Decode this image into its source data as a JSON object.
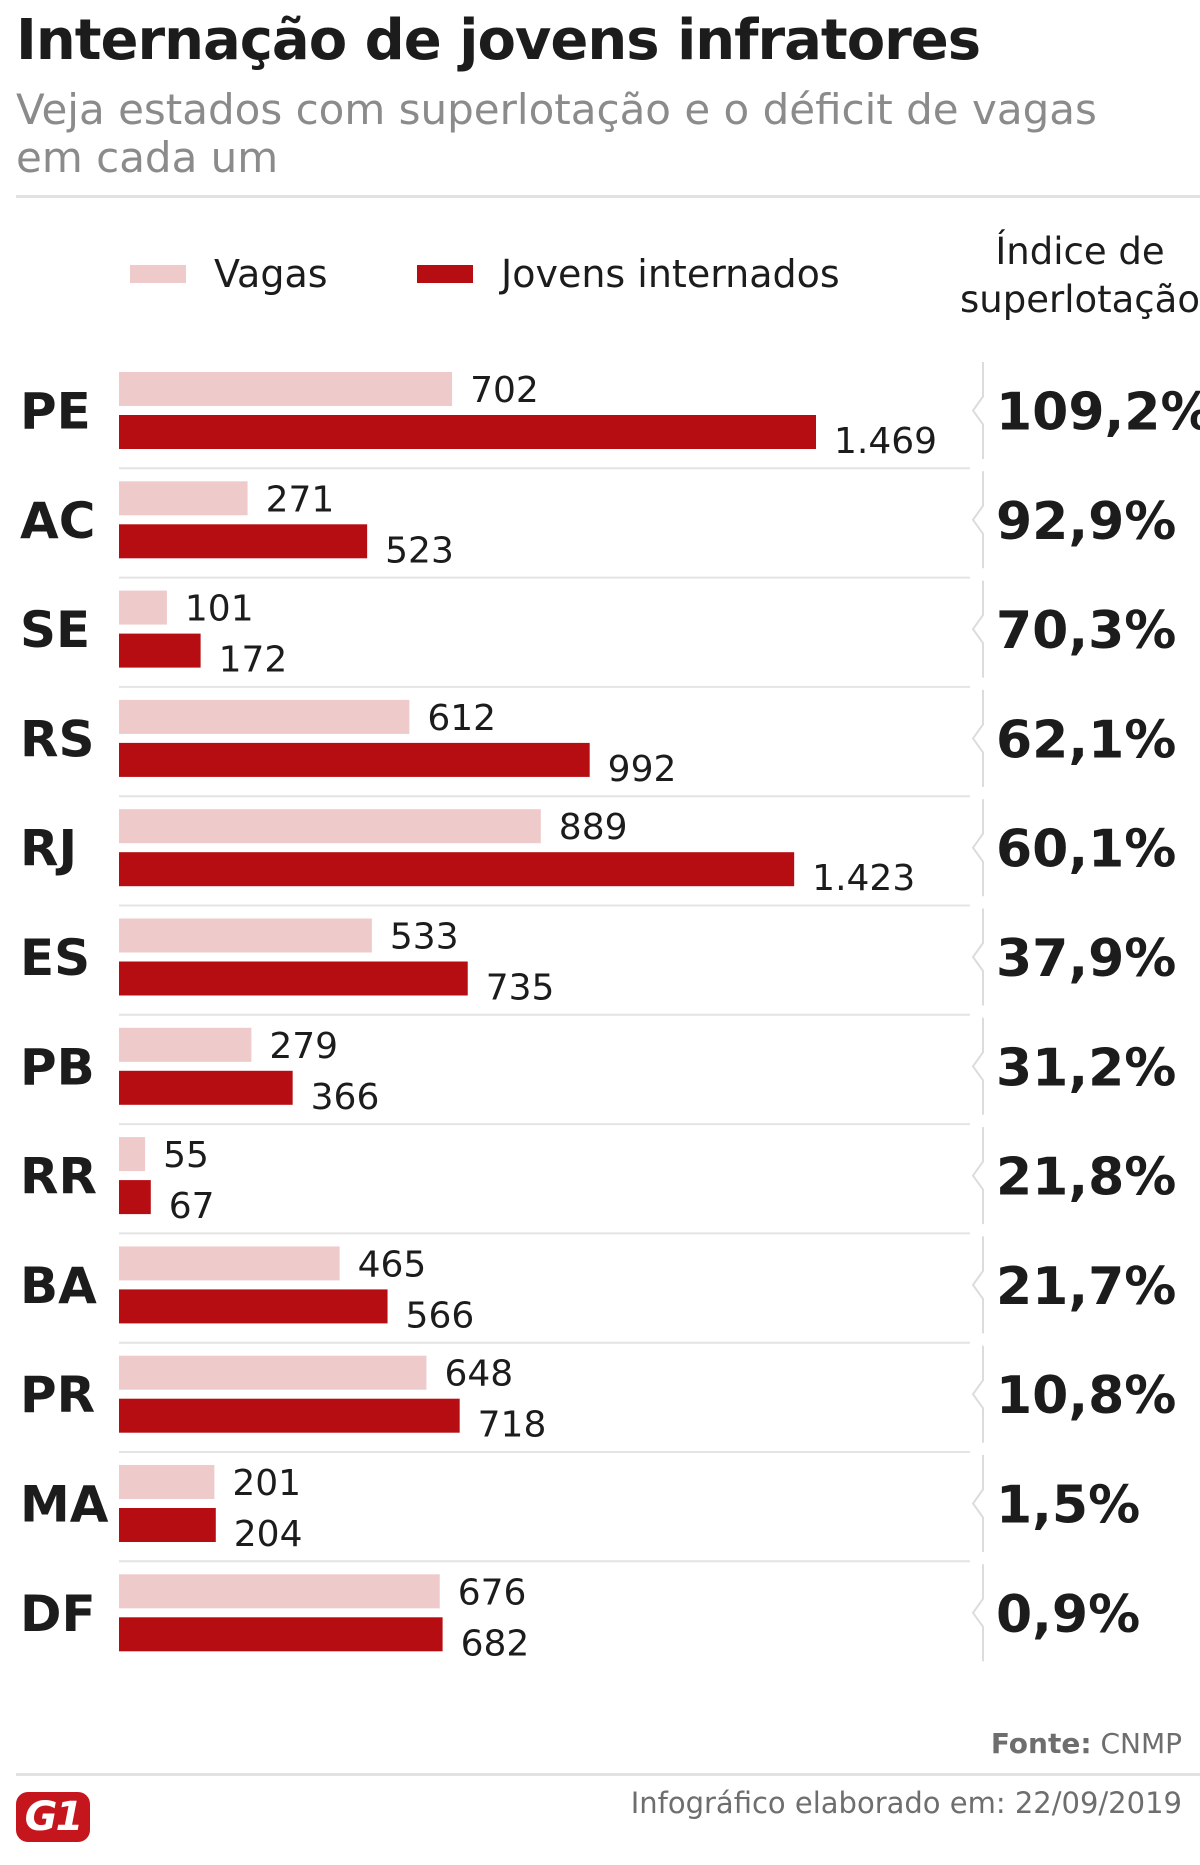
{
  "header": {
    "title": "Internação de jovens infratores",
    "subtitle": "Veja estados com superlotação e o déficit de vagas em cada um"
  },
  "legend": {
    "vagas_label": "Vagas",
    "internados_label": "Jovens internados",
    "index_header": "Índice de superlotação"
  },
  "colors": {
    "vagas": "#efcaca",
    "internados": "#b50d12",
    "logo": "#c4161c"
  },
  "chart_data": {
    "type": "bar",
    "title": "Internação de jovens infratores",
    "subtitle": "Veja estados com superlotação e o déficit de vagas em cada um",
    "orientation": "horizontal",
    "categories": [
      "PE",
      "AC",
      "SE",
      "RS",
      "RJ",
      "ES",
      "PB",
      "RR",
      "BA",
      "PR",
      "MA",
      "DF"
    ],
    "series": [
      {
        "name": "Vagas",
        "values": [
          702,
          271,
          101,
          612,
          889,
          533,
          279,
          55,
          465,
          648,
          201,
          676
        ],
        "labels": [
          "702",
          "271",
          "101",
          "612",
          "889",
          "533",
          "279",
          "55",
          "465",
          "648",
          "201",
          "676"
        ]
      },
      {
        "name": "Jovens internados",
        "values": [
          1469,
          523,
          172,
          992,
          1423,
          735,
          366,
          67,
          566,
          718,
          204,
          682
        ],
        "labels": [
          "1.469",
          "523",
          "172",
          "992",
          "1.423",
          "735",
          "366",
          "67",
          "566",
          "718",
          "204",
          "682"
        ]
      }
    ],
    "index_values": [
      "109,2%",
      "92,9%",
      "70,3%",
      "62,1%",
      "60,1%",
      "37,9%",
      "31,2%",
      "21,8%",
      "21,7%",
      "10,8%",
      "1,5%",
      "0,9%"
    ],
    "xlim": [
      0,
      1469
    ],
    "grid": false,
    "legend_position": "top"
  },
  "footer": {
    "source_label": "Fonte:",
    "source_value": "CNMP",
    "credit": "Infográfico elaborado em: 22/09/2019",
    "logo_text": "G1"
  }
}
